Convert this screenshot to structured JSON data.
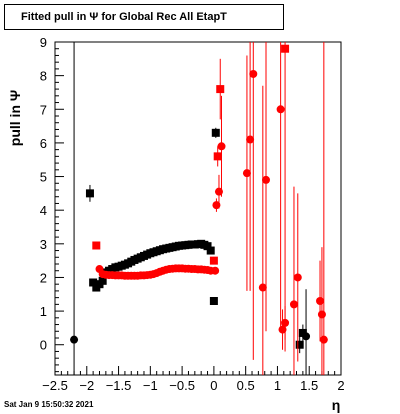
{
  "header": {
    "title": "Fitted pull in  Ψ  for Global Rec All EtapT"
  },
  "footer": {
    "timestamp": "Sat Jan  9 15:50:32 2021"
  },
  "colors": {
    "series_black": "#000000",
    "series_red": "#ff0000",
    "axis": "#000000",
    "background": "#ffffff"
  },
  "chart_data": {
    "type": "scatter",
    "title": "Fitted pull in  Ψ  for Global Rec All EtapT",
    "xlabel": "η",
    "ylabel": "pull in  Ψ",
    "xlim": [
      -2.5,
      2.0
    ],
    "ylim": [
      -0.9,
      9.0
    ],
    "x_ticks": [
      {
        "v": -2.5,
        "label": "−2.5"
      },
      {
        "v": -2.0,
        "label": "−2"
      },
      {
        "v": -1.5,
        "label": "−1.5"
      },
      {
        "v": -1.0,
        "label": "−1"
      },
      {
        "v": -0.5,
        "label": "−0.5"
      },
      {
        "v": 0.0,
        "label": "0"
      },
      {
        "v": 0.5,
        "label": "0.5"
      },
      {
        "v": 1.0,
        "label": "1"
      },
      {
        "v": 1.5,
        "label": "1.5"
      },
      {
        "v": 2.0,
        "label": "2"
      }
    ],
    "y_ticks": [
      {
        "v": 0,
        "label": "0"
      },
      {
        "v": 1,
        "label": "1"
      },
      {
        "v": 2,
        "label": "2"
      },
      {
        "v": 3,
        "label": "3"
      },
      {
        "v": 4,
        "label": "4"
      },
      {
        "v": 5,
        "label": "5"
      },
      {
        "v": 6,
        "label": "6"
      },
      {
        "v": 7,
        "label": "7"
      },
      {
        "v": 8,
        "label": "8"
      },
      {
        "v": 9,
        "label": "9"
      }
    ],
    "grid": false,
    "series": [
      {
        "color": "#000000",
        "markers": [
          {
            "x": -2.2,
            "y": 0.15,
            "shape": "circle",
            "err": 9.0
          },
          {
            "x": -1.95,
            "y": 4.5,
            "shape": "square",
            "err": 0.25
          },
          {
            "x": -1.9,
            "y": 1.85,
            "shape": "square",
            "err": 0
          },
          {
            "x": -1.85,
            "y": 1.7,
            "shape": "square",
            "err": 0
          },
          {
            "x": -1.8,
            "y": 1.8,
            "shape": "square",
            "err": 0
          },
          {
            "x": -1.75,
            "y": 1.9,
            "shape": "square",
            "err": 0
          },
          {
            "x": -1.7,
            "y": 2.15,
            "shape": "square",
            "err": 0
          },
          {
            "x": -1.65,
            "y": 2.2,
            "shape": "square",
            "err": 0
          },
          {
            "x": -1.6,
            "y": 2.25,
            "shape": "square",
            "err": 0
          },
          {
            "x": -1.55,
            "y": 2.3,
            "shape": "square",
            "err": 0
          },
          {
            "x": -1.5,
            "y": 2.32,
            "shape": "square",
            "err": 0
          },
          {
            "x": -1.45,
            "y": 2.35,
            "shape": "square",
            "err": 0
          },
          {
            "x": -1.4,
            "y": 2.38,
            "shape": "square",
            "err": 0
          },
          {
            "x": -1.35,
            "y": 2.42,
            "shape": "square",
            "err": 0
          },
          {
            "x": -1.3,
            "y": 2.47,
            "shape": "square",
            "err": 0
          },
          {
            "x": -1.25,
            "y": 2.52,
            "shape": "square",
            "err": 0
          },
          {
            "x": -1.2,
            "y": 2.56,
            "shape": "square",
            "err": 0
          },
          {
            "x": -1.15,
            "y": 2.6,
            "shape": "square",
            "err": 0
          },
          {
            "x": -1.1,
            "y": 2.64,
            "shape": "square",
            "err": 0
          },
          {
            "x": -1.05,
            "y": 2.68,
            "shape": "square",
            "err": 0
          },
          {
            "x": -1.0,
            "y": 2.72,
            "shape": "square",
            "err": 0
          },
          {
            "x": -0.95,
            "y": 2.75,
            "shape": "square",
            "err": 0
          },
          {
            "x": -0.9,
            "y": 2.78,
            "shape": "square",
            "err": 0
          },
          {
            "x": -0.85,
            "y": 2.81,
            "shape": "square",
            "err": 0
          },
          {
            "x": -0.8,
            "y": 2.84,
            "shape": "square",
            "err": 0
          },
          {
            "x": -0.75,
            "y": 2.86,
            "shape": "square",
            "err": 0
          },
          {
            "x": -0.7,
            "y": 2.88,
            "shape": "square",
            "err": 0
          },
          {
            "x": -0.65,
            "y": 2.9,
            "shape": "square",
            "err": 0
          },
          {
            "x": -0.6,
            "y": 2.92,
            "shape": "square",
            "err": 0
          },
          {
            "x": -0.55,
            "y": 2.94,
            "shape": "square",
            "err": 0
          },
          {
            "x": -0.5,
            "y": 2.95,
            "shape": "square",
            "err": 0
          },
          {
            "x": -0.45,
            "y": 2.96,
            "shape": "square",
            "err": 0
          },
          {
            "x": -0.4,
            "y": 2.97,
            "shape": "square",
            "err": 0
          },
          {
            "x": -0.35,
            "y": 2.98,
            "shape": "square",
            "err": 0
          },
          {
            "x": -0.3,
            "y": 2.98,
            "shape": "square",
            "err": 0
          },
          {
            "x": -0.25,
            "y": 2.99,
            "shape": "square",
            "err": 0
          },
          {
            "x": -0.2,
            "y": 3.0,
            "shape": "square",
            "err": 0
          },
          {
            "x": -0.15,
            "y": 2.97,
            "shape": "square",
            "err": 0
          },
          {
            "x": -0.1,
            "y": 2.93,
            "shape": "square",
            "err": 0
          },
          {
            "x": -0.05,
            "y": 2.8,
            "shape": "square",
            "err": 0
          },
          {
            "x": 0.0,
            "y": 1.3,
            "shape": "square",
            "err": 0
          },
          {
            "x": 0.03,
            "y": 6.3,
            "shape": "square",
            "err": 0.15
          },
          {
            "x": 1.35,
            "y": 0.0,
            "shape": "square",
            "err": 0.25
          },
          {
            "x": 1.4,
            "y": 0.35,
            "shape": "square",
            "err": 0.25
          },
          {
            "x": 1.45,
            "y": 0.25,
            "shape": "circle",
            "err": 1.4
          }
        ]
      },
      {
        "color": "#ff0000",
        "markers": [
          {
            "x": -1.85,
            "y": 2.95,
            "shape": "square",
            "err": 0
          },
          {
            "x": -1.8,
            "y": 2.25,
            "shape": "circle",
            "err": 0
          },
          {
            "x": -1.75,
            "y": 2.1,
            "shape": "circle",
            "err": 0
          },
          {
            "x": -1.7,
            "y": 2.08,
            "shape": "circle",
            "err": 0
          },
          {
            "x": -1.65,
            "y": 2.07,
            "shape": "circle",
            "err": 0
          },
          {
            "x": -1.6,
            "y": 2.07,
            "shape": "circle",
            "err": 0
          },
          {
            "x": -1.55,
            "y": 2.06,
            "shape": "circle",
            "err": 0
          },
          {
            "x": -1.5,
            "y": 2.06,
            "shape": "circle",
            "err": 0
          },
          {
            "x": -1.45,
            "y": 2.06,
            "shape": "circle",
            "err": 0
          },
          {
            "x": -1.4,
            "y": 2.05,
            "shape": "circle",
            "err": 0
          },
          {
            "x": -1.35,
            "y": 2.05,
            "shape": "circle",
            "err": 0
          },
          {
            "x": -1.3,
            "y": 2.05,
            "shape": "circle",
            "err": 0
          },
          {
            "x": -1.25,
            "y": 2.05,
            "shape": "circle",
            "err": 0
          },
          {
            "x": -1.2,
            "y": 2.05,
            "shape": "circle",
            "err": 0
          },
          {
            "x": -1.15,
            "y": 2.06,
            "shape": "circle",
            "err": 0
          },
          {
            "x": -1.1,
            "y": 2.06,
            "shape": "circle",
            "err": 0
          },
          {
            "x": -1.05,
            "y": 2.07,
            "shape": "circle",
            "err": 0
          },
          {
            "x": -1.0,
            "y": 2.08,
            "shape": "circle",
            "err": 0
          },
          {
            "x": -0.95,
            "y": 2.1,
            "shape": "circle",
            "err": 0
          },
          {
            "x": -0.9,
            "y": 2.13,
            "shape": "circle",
            "err": 0
          },
          {
            "x": -0.85,
            "y": 2.17,
            "shape": "circle",
            "err": 0
          },
          {
            "x": -0.8,
            "y": 2.2,
            "shape": "circle",
            "err": 0
          },
          {
            "x": -0.75,
            "y": 2.23,
            "shape": "circle",
            "err": 0
          },
          {
            "x": -0.7,
            "y": 2.25,
            "shape": "circle",
            "err": 0
          },
          {
            "x": -0.65,
            "y": 2.26,
            "shape": "circle",
            "err": 0
          },
          {
            "x": -0.6,
            "y": 2.27,
            "shape": "circle",
            "err": 0
          },
          {
            "x": -0.55,
            "y": 2.27,
            "shape": "circle",
            "err": 0
          },
          {
            "x": -0.5,
            "y": 2.27,
            "shape": "circle",
            "err": 0
          },
          {
            "x": -0.45,
            "y": 2.26,
            "shape": "circle",
            "err": 0
          },
          {
            "x": -0.4,
            "y": 2.26,
            "shape": "circle",
            "err": 0
          },
          {
            "x": -0.35,
            "y": 2.25,
            "shape": "circle",
            "err": 0
          },
          {
            "x": -0.3,
            "y": 2.25,
            "shape": "circle",
            "err": 0
          },
          {
            "x": -0.25,
            "y": 2.24,
            "shape": "circle",
            "err": 0
          },
          {
            "x": -0.2,
            "y": 2.24,
            "shape": "circle",
            "err": 0
          },
          {
            "x": -0.15,
            "y": 2.23,
            "shape": "circle",
            "err": 0
          },
          {
            "x": -0.1,
            "y": 2.22,
            "shape": "circle",
            "err": 0
          },
          {
            "x": -0.05,
            "y": 2.2,
            "shape": "circle",
            "err": 0
          },
          {
            "x": 0.0,
            "y": 2.5,
            "shape": "square",
            "err": 0
          },
          {
            "x": 0.02,
            "y": 2.2,
            "shape": "circle",
            "err": 0
          },
          {
            "x": 0.04,
            "y": 4.15,
            "shape": "circle",
            "err": 0.2
          },
          {
            "x": 0.06,
            "y": 5.6,
            "shape": "square",
            "err": 0.3
          },
          {
            "x": 0.08,
            "y": 4.55,
            "shape": "circle",
            "err": 0.5
          },
          {
            "x": 0.1,
            "y": 7.6,
            "shape": "square",
            "err": 0.9
          },
          {
            "x": 0.12,
            "y": 5.9,
            "shape": "circle",
            "err": 1.5
          },
          {
            "x": 0.52,
            "y": 5.1,
            "shape": "circle",
            "err": 3.5
          },
          {
            "x": 0.57,
            "y": 6.1,
            "shape": "circle",
            "err": 4.5
          },
          {
            "x": 0.62,
            "y": 8.05,
            "shape": "circle",
            "err": 8.5
          },
          {
            "x": 0.77,
            "y": 1.7,
            "shape": "circle",
            "err": 6.0
          },
          {
            "x": 0.82,
            "y": 4.9,
            "shape": "circle",
            "err": 4.5
          },
          {
            "x": 1.05,
            "y": 7.0,
            "shape": "circle",
            "err": 6.5
          },
          {
            "x": 1.08,
            "y": 0.45,
            "shape": "circle",
            "err": 0.6
          },
          {
            "x": 1.12,
            "y": 0.65,
            "shape": "circle",
            "err": 0.5
          },
          {
            "x": 1.12,
            "y": 8.8,
            "shape": "square",
            "err": 9.0
          },
          {
            "x": 1.26,
            "y": 1.2,
            "shape": "circle",
            "err": 3.5
          },
          {
            "x": 1.32,
            "y": 2.0,
            "shape": "circle",
            "err": 2.5
          },
          {
            "x": 1.67,
            "y": 1.3,
            "shape": "circle",
            "err": 1.2
          },
          {
            "x": 1.7,
            "y": 0.9,
            "shape": "circle",
            "err": 2.0
          },
          {
            "x": 1.73,
            "y": 0.15,
            "shape": "circle",
            "err": 9.0
          }
        ]
      }
    ]
  }
}
